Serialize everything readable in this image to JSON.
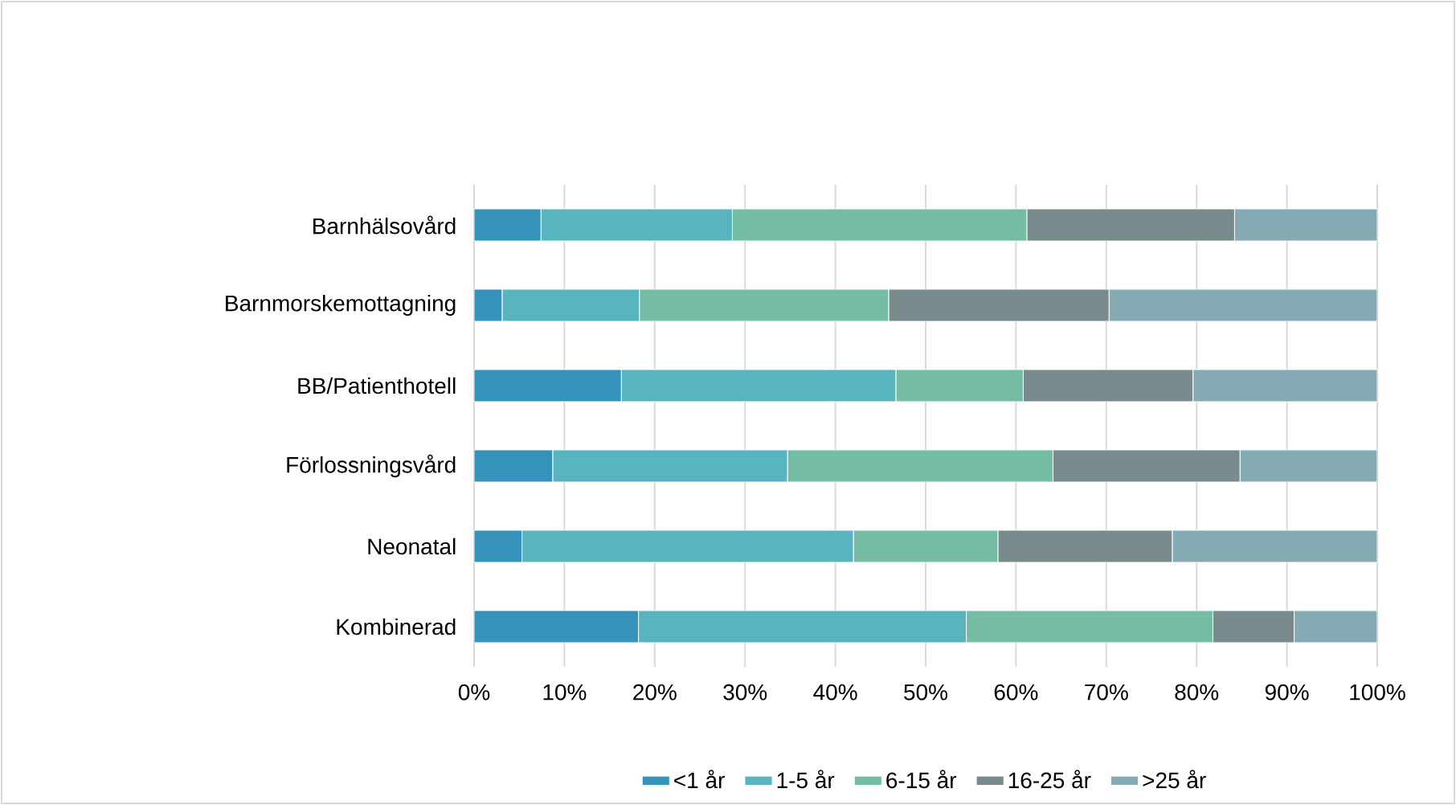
{
  "chart_data": {
    "type": "bar",
    "orientation": "horizontal",
    "stacked": true,
    "categories": [
      "Barnhälsovård",
      "Barnmorskemottagning",
      "BB/Patienthotell",
      "Förlossningsvård",
      "Neonatal",
      "Kombinerad"
    ],
    "series": [
      {
        "name": "<1 år",
        "color": "#3592bb",
        "values": [
          7.4,
          3.1,
          16.3,
          8.7,
          5.3,
          18.2
        ]
      },
      {
        "name": "1-5 år",
        "color": "#58b5c0",
        "values": [
          21.2,
          15.2,
          30.4,
          26.0,
          36.7,
          36.3
        ]
      },
      {
        "name": "6-15 år",
        "color": "#75bca4",
        "values": [
          32.6,
          27.6,
          14.1,
          29.4,
          16.0,
          27.3
        ]
      },
      {
        "name": "16-25 år",
        "color": "#798a8c",
        "values": [
          23.0,
          24.4,
          18.8,
          20.7,
          19.3,
          9.0
        ]
      },
      {
        "name": ">25 år",
        "color": "#84aab4",
        "values": [
          15.8,
          29.7,
          20.4,
          15.2,
          22.7,
          9.2
        ]
      }
    ],
    "xlim": [
      0,
      100
    ],
    "xticks": [
      {
        "value": 0,
        "label": "0%"
      },
      {
        "value": 10,
        "label": "10%"
      },
      {
        "value": 20,
        "label": "20%"
      },
      {
        "value": 30,
        "label": "30%"
      },
      {
        "value": 40,
        "label": "40%"
      },
      {
        "value": 50,
        "label": "50%"
      },
      {
        "value": 60,
        "label": "60%"
      },
      {
        "value": 70,
        "label": "70%"
      },
      {
        "value": 80,
        "label": "80%"
      },
      {
        "value": 90,
        "label": "90%"
      },
      {
        "value": 100,
        "label": "100%"
      }
    ],
    "grid": "x",
    "legend": "bottom"
  }
}
